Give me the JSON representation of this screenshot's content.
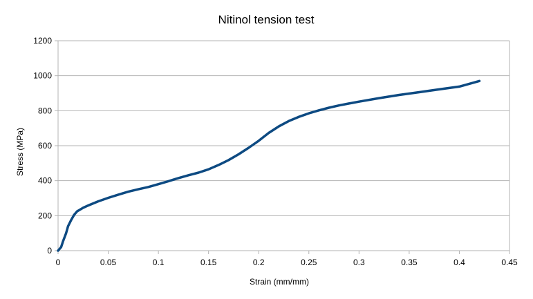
{
  "chart_data": {
    "type": "line",
    "title": "Nitinol tension test",
    "xlabel": "Strain (mm/mm)",
    "ylabel": "Stress (MPa)",
    "xlim": [
      0,
      0.45
    ],
    "ylim": [
      0,
      1200
    ],
    "x_ticks": [
      "0",
      "0.05",
      "0.1",
      "0.15",
      "0.2",
      "0.25",
      "0.3",
      "0.35",
      "0.4",
      "0.45"
    ],
    "y_ticks": [
      "0",
      "200",
      "400",
      "600",
      "800",
      "1000",
      "1200"
    ],
    "grid": "horizontal",
    "legend": "none",
    "series": [
      {
        "color": "#0d4a82",
        "x": [
          0,
          0.003,
          0.005,
          0.008,
          0.01,
          0.013,
          0.016,
          0.019,
          0.022,
          0.025,
          0.03,
          0.04,
          0.05,
          0.06,
          0.07,
          0.08,
          0.09,
          0.1,
          0.11,
          0.12,
          0.13,
          0.14,
          0.15,
          0.16,
          0.17,
          0.18,
          0.19,
          0.2,
          0.21,
          0.22,
          0.23,
          0.24,
          0.25,
          0.26,
          0.27,
          0.28,
          0.29,
          0.3,
          0.32,
          0.34,
          0.36,
          0.38,
          0.4,
          0.42
        ],
        "y": [
          0,
          20,
          55,
          100,
          140,
          175,
          205,
          225,
          235,
          245,
          258,
          282,
          302,
          320,
          337,
          351,
          364,
          380,
          397,
          415,
          431,
          446,
          465,
          490,
          518,
          551,
          588,
          628,
          673,
          710,
          741,
          765,
          785,
          802,
          817,
          830,
          841,
          852,
          872,
          890,
          906,
          922,
          938,
          970
        ]
      }
    ]
  }
}
